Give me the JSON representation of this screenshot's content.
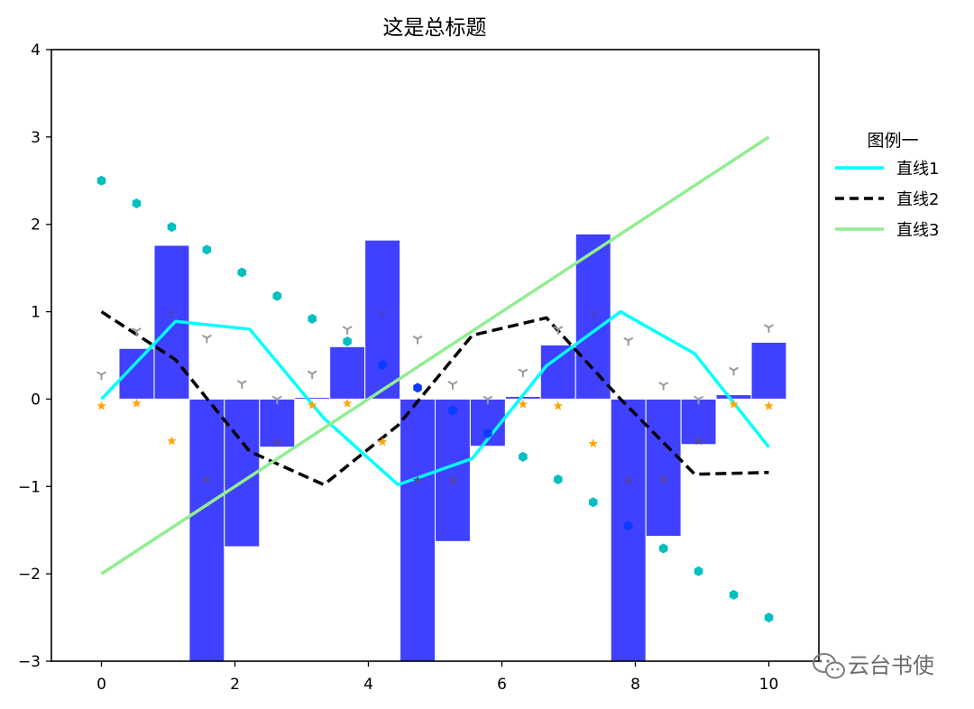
{
  "chart_data": {
    "type": "bar",
    "title": "这是总标题",
    "xlim": [
      -0.75,
      10.75
    ],
    "ylim": [
      -3,
      4
    ],
    "x_ticks": [
      0,
      2,
      4,
      6,
      8,
      10
    ],
    "y_ticks": [
      -3,
      -2,
      -1,
      0,
      1,
      2,
      3,
      4
    ],
    "grid": false,
    "bars": {
      "color": "#4040ff",
      "edgecolor": "#ffffff",
      "width": 0.526,
      "x": [
        0.0,
        0.526,
        1.053,
        1.579,
        2.105,
        2.632,
        3.158,
        3.684,
        4.211,
        4.737,
        5.263,
        5.789,
        6.316,
        6.842,
        7.368,
        7.895,
        8.421,
        8.947,
        9.474,
        10.0
      ],
      "values": [
        0.0,
        0.58,
        1.76,
        -3.3,
        -1.69,
        -0.55,
        0.02,
        0.6,
        1.82,
        -3.3,
        -1.63,
        -0.54,
        0.03,
        0.62,
        1.89,
        -3.3,
        -1.57,
        -0.52,
        0.05,
        0.65
      ]
    },
    "lines": [
      {
        "name": "直线1",
        "color": "#00ffff",
        "style": "solid",
        "x": [
          0.0,
          1.111,
          2.222,
          3.333,
          4.444,
          5.556,
          6.667,
          7.778,
          8.889,
          10.0
        ],
        "y": [
          0.0,
          0.89,
          0.8,
          -0.22,
          -0.98,
          -0.68,
          0.38,
          1.0,
          0.52,
          -0.55
        ]
      },
      {
        "name": "直线2",
        "color": "#000000",
        "style": "dashed",
        "x": [
          0.0,
          1.111,
          2.222,
          3.333,
          4.444,
          5.556,
          6.667,
          7.778,
          8.889,
          10.0
        ],
        "y": [
          1.0,
          0.45,
          -0.6,
          -0.98,
          -0.3,
          0.73,
          0.93,
          0.0,
          -0.86,
          -0.84
        ]
      },
      {
        "name": "直线3",
        "color": "#90ee90",
        "style": "solid",
        "x": [
          0,
          10
        ],
        "y": [
          -2,
          3
        ]
      }
    ],
    "scatter_series": [
      {
        "marker": "hexagon",
        "color": "#00bfbf",
        "x": [
          0.0,
          0.526,
          1.053,
          1.579,
          2.105,
          2.632,
          3.158,
          3.684,
          6.316,
          6.842,
          7.368,
          8.421,
          8.947,
          9.474,
          10.0
        ],
        "y": [
          2.5,
          2.24,
          1.97,
          1.71,
          1.45,
          1.18,
          0.92,
          0.66,
          -0.66,
          -0.92,
          -1.18,
          -1.71,
          -1.97,
          -2.24,
          -2.5
        ]
      },
      {
        "marker": "hexagon",
        "color": "#0a3cff",
        "x": [
          4.211,
          4.737,
          5.263,
          5.789,
          7.895
        ],
        "y": [
          0.39,
          0.13,
          -0.13,
          -0.39,
          -1.45
        ]
      },
      {
        "marker": "star",
        "color": "#ffa500",
        "x": [
          0.0,
          0.526,
          1.053,
          3.158,
          3.684,
          4.211,
          6.316,
          6.842,
          7.368,
          9.474,
          10.0
        ],
        "y": [
          -0.08,
          -0.05,
          -0.48,
          -0.07,
          -0.05,
          -0.49,
          -0.06,
          -0.08,
          -0.51,
          -0.06,
          -0.08
        ]
      },
      {
        "marker": "star",
        "color": "#55449a",
        "x": [
          1.579,
          2.632,
          4.737,
          5.263,
          7.895,
          8.421,
          8.947
        ],
        "y": [
          -0.92,
          -0.5,
          -0.93,
          -0.93,
          -0.93,
          -0.92,
          -0.48
        ]
      },
      {
        "marker": "tri_down",
        "color": "#999999",
        "x": [
          0.0,
          0.526,
          1.579,
          2.105,
          2.632,
          3.158,
          3.684,
          4.737,
          5.263,
          5.789,
          6.316,
          6.842,
          7.895,
          8.421,
          8.947,
          9.474,
          10.0
        ],
        "y": [
          0.28,
          0.78,
          0.7,
          0.18,
          0.0,
          0.29,
          0.8,
          0.69,
          0.17,
          0.0,
          0.31,
          0.8,
          0.67,
          0.16,
          0.0,
          0.33,
          0.82
        ]
      },
      {
        "marker": "tri_down",
        "color": "#4a3fc9",
        "x": [
          1.053,
          4.211,
          7.368
        ],
        "y": [
          0.98,
          0.98,
          0.98
        ]
      }
    ],
    "legend": {
      "title": "图例一",
      "placement": "outside-right",
      "entries": [
        {
          "label": "直线1",
          "color": "#00ffff",
          "style": "solid"
        },
        {
          "label": "直线2",
          "color": "#000000",
          "style": "dashed"
        },
        {
          "label": "直线3",
          "color": "#90ee90",
          "style": "solid"
        }
      ]
    }
  },
  "watermark": {
    "text": "云台书使",
    "icon": "wechat-icon"
  }
}
